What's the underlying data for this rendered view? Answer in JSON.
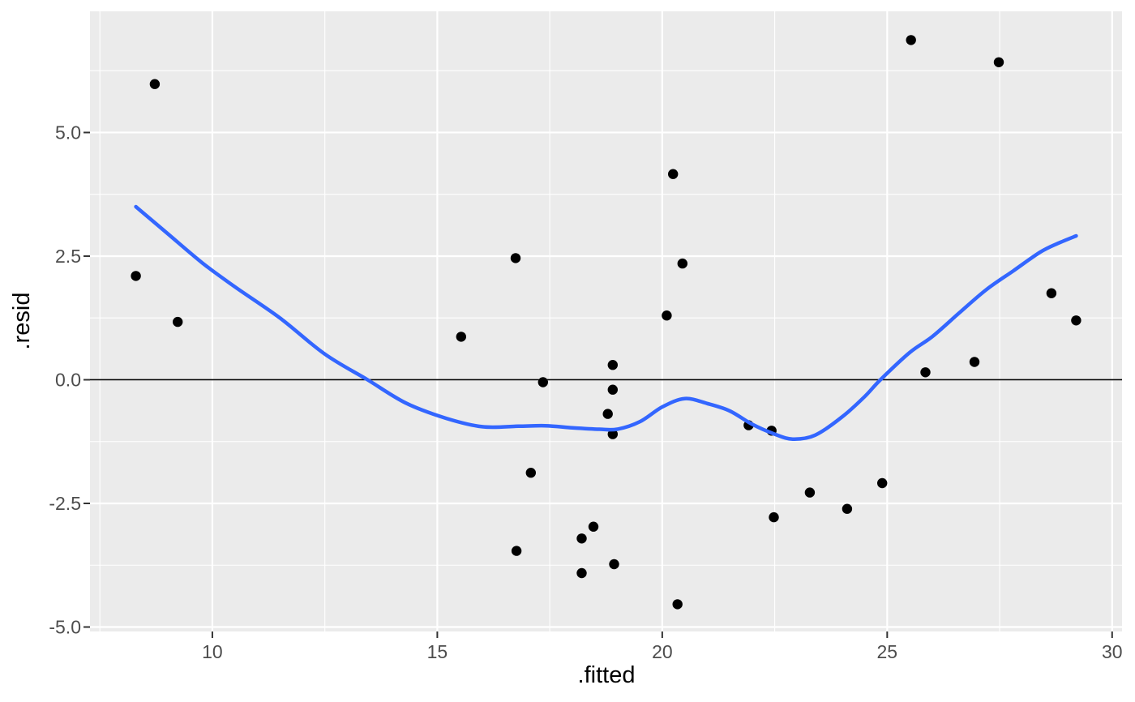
{
  "chart_data": {
    "type": "scatter",
    "title": "",
    "xlabel": ".fitted",
    "ylabel": ".resid",
    "xlim": [
      7.28,
      30.22
    ],
    "ylim": [
      -5.09,
      7.45
    ],
    "grid": "on",
    "legend": "none",
    "x_axis": {
      "major_ticks": [
        10,
        15,
        20,
        25,
        30
      ],
      "tick_labels": [
        "10",
        "15",
        "20",
        "25",
        "30"
      ],
      "minor_ticks": [
        7.5,
        12.5,
        17.5,
        22.5,
        27.5
      ]
    },
    "y_axis": {
      "major_ticks": [
        -5.0,
        -2.5,
        0.0,
        2.5,
        5.0
      ],
      "tick_labels": [
        "-5.0",
        "-2.5",
        "0.0",
        "2.5",
        "5.0"
      ],
      "minor_ticks": [
        -3.75,
        -1.25,
        1.25,
        3.75,
        6.25
      ]
    },
    "reference_line_y": 0,
    "points": [
      [
        23.28,
        -2.28
      ],
      [
        21.92,
        -0.92
      ],
      [
        24.89,
        -2.09
      ],
      [
        20.1,
        1.3
      ],
      [
        18.9,
        -0.2
      ],
      [
        18.79,
        -0.69
      ],
      [
        18.21,
        -3.91
      ],
      [
        20.24,
        4.16
      ],
      [
        20.45,
        2.35
      ],
      [
        18.9,
        0.3
      ],
      [
        18.9,
        -1.1
      ],
      [
        15.53,
        0.87
      ],
      [
        17.35,
        -0.05
      ],
      [
        17.08,
        -1.88
      ],
      [
        9.23,
        1.17
      ],
      [
        8.3,
        2.1
      ],
      [
        8.72,
        5.98
      ],
      [
        25.53,
        6.87
      ],
      [
        28.65,
        1.75
      ],
      [
        27.48,
        6.42
      ],
      [
        24.11,
        -2.61
      ],
      [
        18.47,
        -2.97
      ],
      [
        18.93,
        -3.73
      ],
      [
        16.76,
        -3.46
      ],
      [
        16.74,
        2.46
      ],
      [
        26.94,
        0.36
      ],
      [
        25.85,
        0.15
      ],
      [
        29.2,
        1.2
      ],
      [
        20.34,
        -4.54
      ],
      [
        22.48,
        -2.78
      ],
      [
        18.21,
        -3.21
      ],
      [
        22.43,
        -1.03
      ]
    ],
    "smooth_line": [
      [
        8.3,
        3.5
      ],
      [
        9.0,
        2.96
      ],
      [
        9.78,
        2.36
      ],
      [
        10.5,
        1.88
      ],
      [
        11.5,
        1.25
      ],
      [
        12.5,
        0.52
      ],
      [
        13.45,
        0.0
      ],
      [
        14.3,
        -0.47
      ],
      [
        15.2,
        -0.78
      ],
      [
        16.0,
        -0.95
      ],
      [
        16.8,
        -0.94
      ],
      [
        17.4,
        -0.93
      ],
      [
        18.0,
        -0.97
      ],
      [
        18.6,
        -1.0
      ],
      [
        19.0,
        -1.0
      ],
      [
        19.5,
        -0.85
      ],
      [
        20.0,
        -0.55
      ],
      [
        20.5,
        -0.38
      ],
      [
        21.0,
        -0.48
      ],
      [
        21.5,
        -0.63
      ],
      [
        22.0,
        -0.9
      ],
      [
        22.5,
        -1.1
      ],
      [
        22.9,
        -1.2
      ],
      [
        23.4,
        -1.12
      ],
      [
        24.0,
        -0.75
      ],
      [
        24.5,
        -0.34
      ],
      [
        24.85,
        0.0
      ],
      [
        25.5,
        0.55
      ],
      [
        26.0,
        0.87
      ],
      [
        26.6,
        1.35
      ],
      [
        27.2,
        1.82
      ],
      [
        27.8,
        2.2
      ],
      [
        28.4,
        2.58
      ],
      [
        28.8,
        2.76
      ],
      [
        29.2,
        2.91
      ]
    ],
    "style": {
      "panel_bg": "#EBEBEB",
      "grid_color": "#FFFFFF",
      "point_color": "#000000",
      "smooth_color": "#3366FF",
      "zero_line_color": "#000000",
      "tick_color": "#333333",
      "tick_label_color": "#4D4D4D",
      "axis_title_color": "#000000",
      "figure_bg": "#FFFFFF"
    }
  }
}
